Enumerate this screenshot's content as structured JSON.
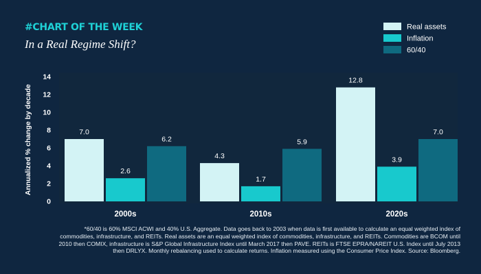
{
  "header": {
    "kicker": "#CHART OF THE WEEK",
    "subtitle": "In a Real Regime Shift?"
  },
  "colors": {
    "background": "#0f2640",
    "plot_background": "#11273d",
    "Real assets": "#d3f3f5",
    "Inflation": "#18c9cd",
    "60/40": "#0f6a80"
  },
  "chart_data": {
    "type": "bar",
    "categories": [
      "2000s",
      "2010s",
      "2020s"
    ],
    "series": [
      {
        "name": "Real assets",
        "values": [
          7.0,
          4.3,
          12.8
        ]
      },
      {
        "name": "Inflation",
        "values": [
          2.6,
          1.7,
          3.9
        ]
      },
      {
        "name": "60/40",
        "values": [
          6.2,
          5.9,
          7.0
        ]
      }
    ],
    "ylabel": "Annualized % change by decade",
    "ylim": [
      0,
      14
    ],
    "yticks": [
      0,
      2,
      4,
      6,
      8,
      10,
      12,
      14
    ],
    "legend_position": "top-right",
    "grid": false,
    "data_labels": true
  },
  "footnote": "*60/40 is 60% MSCI ACWI and 40% U.S. Aggregate. Data goes back to 2003 when data is first available to calculate an equal weighted index of commodities, infrastructure, and REITs. Real assets are an equal weighted index of commodities, infrastructure, and REITs. Commodities are BCOM until 2010 then COMIX, infrastructure is S&P Global Infrastructure Index until March 2017 then PAVE. REITs is FTSE EPRA/NAREIT U.S. Index until July 2013 then DRLYX. Monthly rebalancing used to calculate returns. Inflation measured using the Consumer Price Index. Source: Bloomberg."
}
